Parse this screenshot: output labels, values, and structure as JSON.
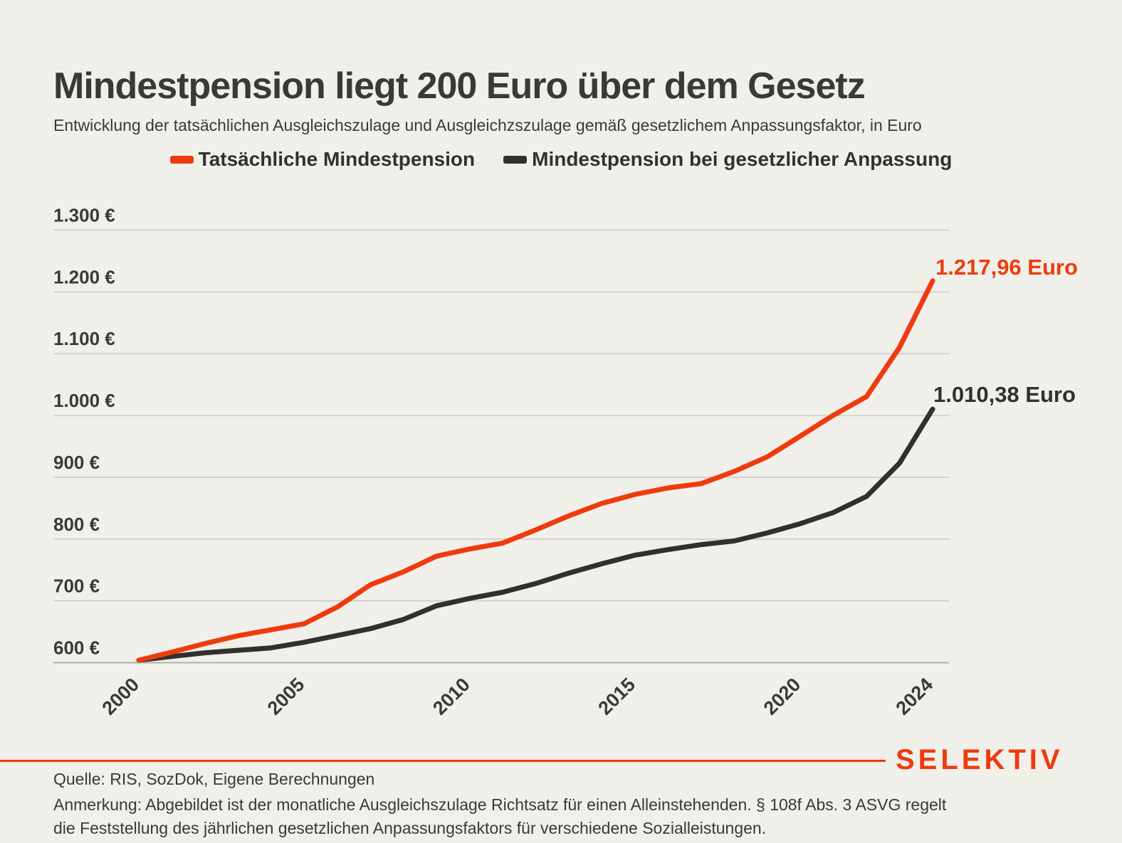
{
  "header": {
    "title": "Mindestpension liegt 200 Euro über dem Gesetz",
    "subtitle": "Entwicklung der tatsächlichen Ausgleichszulage und Ausgleichzszulage gemäß gesetzlichem Anpassungsfaktor, in Euro"
  },
  "legend": {
    "items": [
      {
        "label": "Tatsächliche Mindestpension",
        "color": "#EE3B0E"
      },
      {
        "label": "Mindestpension bei gesetzlicher Anpassung",
        "color": "#32302D"
      }
    ]
  },
  "chart_data": {
    "type": "line",
    "title": "Mindestpension liegt 200 Euro über dem Gesetz",
    "xlabel": "",
    "ylabel": "Euro",
    "grid": true,
    "legend_position": "top",
    "ylim": [
      600,
      1300
    ],
    "xlim": [
      2000,
      2024
    ],
    "x": [
      2000,
      2001,
      2002,
      2003,
      2004,
      2005,
      2006,
      2007,
      2008,
      2009,
      2010,
      2011,
      2012,
      2013,
      2014,
      2015,
      2016,
      2017,
      2018,
      2019,
      2020,
      2021,
      2022,
      2023,
      2024
    ],
    "series": [
      {
        "name": "Tatsächliche Mindestpension",
        "color": "#EE3B0E",
        "end_label": "1.217,96 Euro",
        "values": [
          604.06,
          617,
          630.92,
          643.54,
          653.19,
          662.99,
          690,
          726,
          747,
          772.4,
          783.99,
          793.4,
          814.82,
          837.63,
          857.73,
          872.31,
          882.78,
          889.84,
          909.42,
          933.06,
          966.65,
          1000.48,
          1030.49,
          1110.26,
          1217.96
        ]
      },
      {
        "name": "Mindestpension bei gesetzlicher Anpassung",
        "color": "#32302D",
        "end_label": "1.010,38 Euro",
        "values": [
          604.06,
          610,
          616,
          620,
          624,
          633,
          644,
          655,
          670,
          692,
          704,
          714,
          728,
          745,
          760,
          774,
          783,
          791,
          797,
          810,
          825,
          843,
          869,
          923,
          1010.38
        ]
      }
    ],
    "y_ticks": [
      {
        "value": 600,
        "label": "600 €"
      },
      {
        "value": 700,
        "label": "700 €"
      },
      {
        "value": 800,
        "label": "800 €"
      },
      {
        "value": 900,
        "label": "900 €"
      },
      {
        "value": 1000,
        "label": "1.000 €"
      },
      {
        "value": 1100,
        "label": "1.100 €"
      },
      {
        "value": 1200,
        "label": "1.200 €"
      },
      {
        "value": 1300,
        "label": "1.300 €"
      }
    ],
    "x_ticks": [
      {
        "value": 2000,
        "label": "2000"
      },
      {
        "value": 2005,
        "label": "2005"
      },
      {
        "value": 2010,
        "label": "2010"
      },
      {
        "value": 2015,
        "label": "2015"
      },
      {
        "value": 2020,
        "label": "2020"
      },
      {
        "value": 2024,
        "label": "2024"
      }
    ]
  },
  "footer": {
    "source": "Quelle: RIS, SozDok, Eigene Berechnungen",
    "note_line1": "Anmerkung: Abgebildet ist der monatliche Ausgleichszulage Richtsatz für einen Alleinstehenden. § 108f Abs. 3 ASVG regelt",
    "note_line2": "die Feststellung des jährlichen gesetzlichen Anpassungsfaktors für verschiedene Sozialleistungen.",
    "brand": "SELEKTIV"
  },
  "colors": {
    "background": "#F1EFEA",
    "accent_red": "#EE3B0E",
    "dark": "#32302D",
    "text": "#3B3936",
    "gridline": "#CCCAC5",
    "axisline": "#B3B1AC"
  }
}
